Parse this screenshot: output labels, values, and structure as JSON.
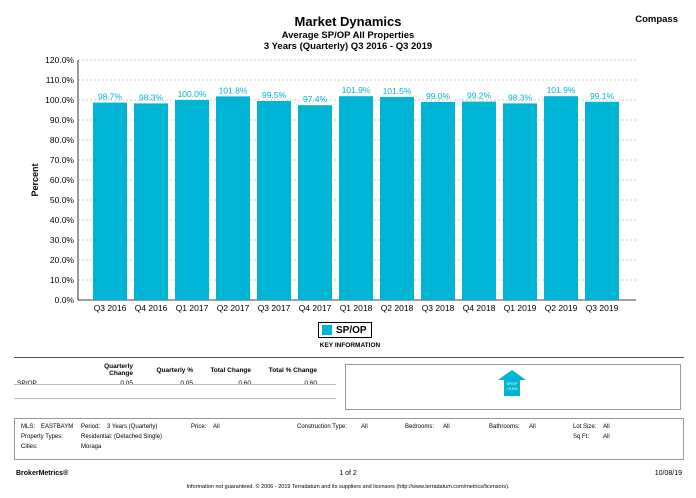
{
  "header": {
    "title": "Market Dynamics",
    "subtitle1": "Average SP/OP All Properties",
    "subtitle2": "3 Years (Quarterly) Q3 2016 - Q3 2019",
    "brand": "Compass"
  },
  "chart_data": {
    "type": "bar",
    "title": "Market Dynamics",
    "ylabel": "Percent",
    "xlabel": "",
    "ylim": [
      0,
      120
    ],
    "y_ticks": [
      "0.0%",
      "10.0%",
      "20.0%",
      "30.0%",
      "40.0%",
      "50.0%",
      "60.0%",
      "70.0%",
      "80.0%",
      "90.0%",
      "100.0%",
      "110.0%",
      "120.0%"
    ],
    "categories": [
      "Q3 2016",
      "Q4 2016",
      "Q1 2017",
      "Q2 2017",
      "Q3 2017",
      "Q4 2017",
      "Q1 2018",
      "Q2 2018",
      "Q3 2018",
      "Q4 2018",
      "Q1 2019",
      "Q2 2019",
      "Q3 2019"
    ],
    "series": [
      {
        "name": "SP/OP",
        "color": "#00b4d6",
        "values": [
          98.7,
          98.3,
          100.0,
          101.8,
          99.5,
          97.4,
          101.9,
          101.5,
          99.0,
          99.2,
          98.3,
          101.9,
          99.1
        ],
        "labels": [
          "98.7%",
          "98.3%",
          "100.0%",
          "101.8%",
          "99.5%",
          "97.4%",
          "101.9%",
          "101.5%",
          "99.0%",
          "99.2%",
          "98.3%",
          "101.9%",
          "99.1%"
        ]
      }
    ],
    "grid": true,
    "legend": "bottom-center"
  },
  "legend": {
    "label": "SP/OP",
    "key_info": "KEY INFORMATION"
  },
  "summary": {
    "headers": [
      "Quarterly Change",
      "Quarterly %",
      "Total Change",
      "Total % Change"
    ],
    "row": {
      "label": "SP/OP",
      "values": [
        "0.05",
        "0.05",
        "0.60",
        "0.60"
      ]
    },
    "indicator": {
      "line1": "SP/OP",
      "line2": "+0.6%",
      "color": "#00b4d6"
    }
  },
  "criteria": {
    "mls_label": "MLS:",
    "mls_value": "EASTBAYM",
    "period_label": "Period:",
    "period_value": "3 Years (Quarterly)",
    "price_label": "Price:",
    "price_value": "All",
    "construction_label": "Construction Type:",
    "construction_value": "All",
    "bedrooms_label": "Bedrooms:",
    "bedrooms_value": "All",
    "bathrooms_label": "Bathrooms:",
    "bathrooms_value": "All",
    "lotsize_label": "Lot Size:",
    "lotsize_value": "All",
    "proptype_label": "Property Types:",
    "proptype_value": "Residential: (Detached Single)",
    "sqft_label": "Sq Ft:",
    "sqft_value": "All",
    "cities_label": "Cities:",
    "cities_value": "Moraga"
  },
  "footer": {
    "left": "BrokerMetrics®",
    "page": "1 of 2",
    "date": "10/08/19",
    "note": "Information not guaranteed. © 2006 - 2019 Terradatum and its suppliers and licensors (http://www.terradatum.com/metrics/licensors)."
  }
}
